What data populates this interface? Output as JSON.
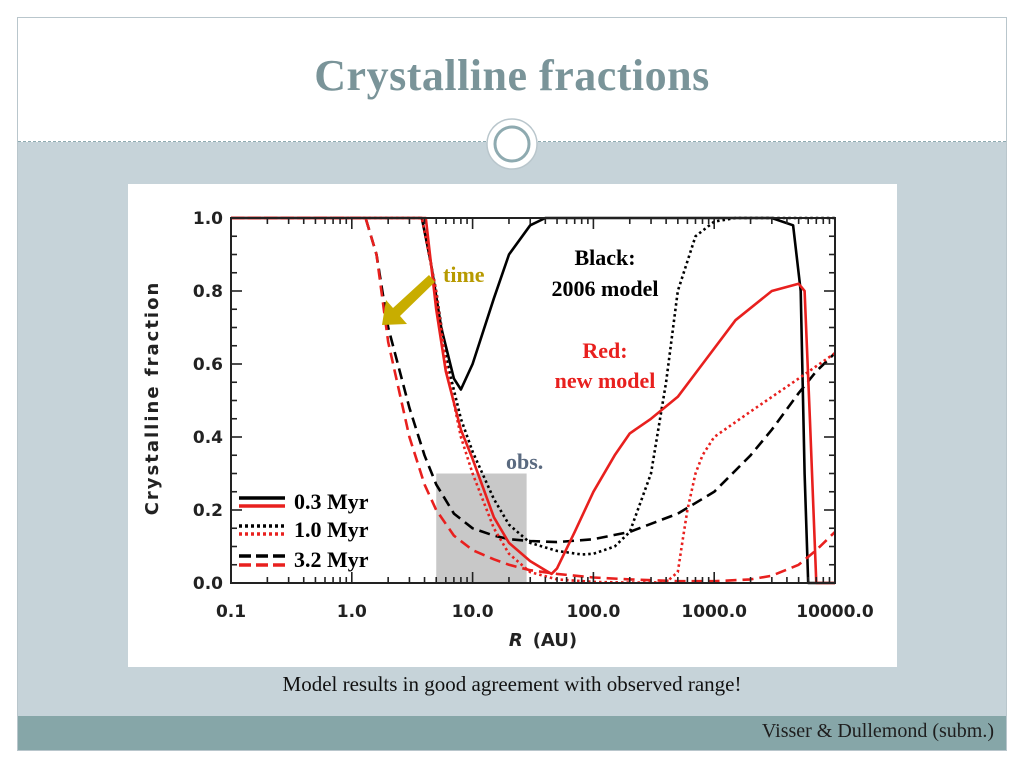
{
  "slide": {
    "title": "Crystalline fractions",
    "caption": "Model results in good agreement with observed range!",
    "footer": "Visser & Dullemond (subm.)"
  },
  "chart_data": {
    "type": "line",
    "xlabel_var": "R",
    "xlabel_unit": "(AU)",
    "ylabel": "Crystalline fraction",
    "xscale": "log",
    "xlim": [
      0.1,
      10000
    ],
    "ylim": [
      0,
      1
    ],
    "xticks": [
      0.1,
      1,
      10,
      100,
      1000,
      10000
    ],
    "xtick_labels": [
      "0.1",
      "1.0",
      "10.0",
      "100.0",
      "1000.0",
      "10000.0"
    ],
    "yticks": [
      0,
      0.2,
      0.4,
      0.6,
      0.8,
      1.0
    ],
    "ytick_labels": [
      "0.0",
      "0.2",
      "0.4",
      "0.6",
      "0.8",
      "1.0"
    ],
    "grid": false,
    "legend": {
      "placement": "bottom-left",
      "entries": [
        {
          "label": "0.3 Myr",
          "style": "solid"
        },
        {
          "label": "1.0 Myr",
          "style": "dotted"
        },
        {
          "label": "3.2 Myr",
          "style": "dashed"
        }
      ]
    },
    "annotations": {
      "time": "time",
      "obs": "obs.",
      "black_line1": "Black:",
      "black_line2": "2006 model",
      "red_line1": "Red:",
      "red_line2": "new model"
    },
    "obs_region": {
      "x": [
        5,
        28
      ],
      "y": [
        0,
        0.3
      ]
    },
    "colors": {
      "black_model": "#000000",
      "red_model": "#e8201e",
      "arrow": "#c8ad00",
      "obs_box": "#c8c8c8",
      "time": "#b79a00",
      "obs": "#5a6a80"
    },
    "series": [
      {
        "model": "black",
        "time": "0.3 Myr",
        "style": "solid",
        "x": [
          0.1,
          3.8,
          4.5,
          5.5,
          7,
          8,
          10,
          15,
          20,
          30,
          40,
          60,
          100,
          200,
          500,
          1000,
          3000,
          4500,
          5200,
          5600,
          6000,
          10000
        ],
        "y": [
          1.0,
          1.0,
          0.88,
          0.7,
          0.56,
          0.53,
          0.6,
          0.78,
          0.9,
          0.98,
          1.0,
          1.0,
          1.0,
          1.0,
          1.0,
          1.0,
          1.0,
          0.98,
          0.8,
          0.3,
          0.0,
          0.0
        ]
      },
      {
        "model": "black",
        "time": "1.0 Myr",
        "style": "dotted",
        "x": [
          0.1,
          3.8,
          5,
          6,
          8,
          10,
          15,
          20,
          30,
          50,
          80,
          100,
          150,
          200,
          300,
          400,
          500,
          700,
          1000,
          1500,
          2000,
          10000
        ],
        "y": [
          1.0,
          1.0,
          0.8,
          0.62,
          0.45,
          0.36,
          0.23,
          0.16,
          0.11,
          0.088,
          0.078,
          0.08,
          0.1,
          0.14,
          0.3,
          0.55,
          0.8,
          0.95,
          0.99,
          1.0,
          1.0,
          1.0
        ]
      },
      {
        "model": "black",
        "time": "3.2 Myr",
        "style": "dashed",
        "x": [
          0.1,
          1.3,
          1.6,
          2,
          3,
          4,
          5,
          7,
          10,
          15,
          20,
          30,
          50,
          100,
          200,
          500,
          1000,
          2000,
          3000,
          5000,
          7000,
          10000
        ],
        "y": [
          1.0,
          1.0,
          0.9,
          0.7,
          0.48,
          0.35,
          0.27,
          0.19,
          0.15,
          0.13,
          0.12,
          0.115,
          0.112,
          0.12,
          0.14,
          0.19,
          0.25,
          0.35,
          0.42,
          0.52,
          0.58,
          0.63
        ]
      },
      {
        "model": "red",
        "time": "0.3 Myr",
        "style": "solid",
        "x": [
          0.1,
          4.1,
          5,
          6,
          8,
          10,
          15,
          20,
          30,
          40,
          45,
          50,
          70,
          100,
          150,
          200,
          300,
          500,
          800,
          1500,
          3000,
          5000,
          5600,
          6200,
          7000,
          10000
        ],
        "y": [
          1.0,
          1.0,
          0.75,
          0.58,
          0.42,
          0.34,
          0.18,
          0.11,
          0.06,
          0.035,
          0.025,
          0.04,
          0.14,
          0.25,
          0.35,
          0.41,
          0.45,
          0.51,
          0.6,
          0.72,
          0.8,
          0.82,
          0.8,
          0.45,
          0.0,
          0.0
        ]
      },
      {
        "model": "red",
        "time": "1.0 Myr",
        "style": "dotted",
        "x": [
          0.1,
          3.8,
          5,
          6,
          8,
          10,
          15,
          20,
          30,
          50,
          100,
          200,
          400,
          500,
          550,
          600,
          700,
          800,
          1000,
          2000,
          5000,
          10000
        ],
        "y": [
          1.0,
          1.0,
          0.8,
          0.6,
          0.4,
          0.3,
          0.15,
          0.08,
          0.03,
          0.01,
          0.003,
          0.001,
          0.002,
          0.03,
          0.12,
          0.2,
          0.3,
          0.35,
          0.4,
          0.47,
          0.56,
          0.63
        ]
      },
      {
        "model": "red",
        "time": "3.2 Myr",
        "style": "dashed",
        "x": [
          0.1,
          1.3,
          1.6,
          2,
          3,
          4,
          5,
          7,
          10,
          15,
          20,
          30,
          50,
          100,
          200,
          500,
          1000,
          2000,
          3000,
          5000,
          7000,
          10000
        ],
        "y": [
          1.0,
          1.0,
          0.9,
          0.66,
          0.4,
          0.27,
          0.2,
          0.13,
          0.09,
          0.065,
          0.05,
          0.035,
          0.025,
          0.015,
          0.01,
          0.005,
          0.005,
          0.01,
          0.02,
          0.05,
          0.09,
          0.14
        ]
      }
    ]
  }
}
